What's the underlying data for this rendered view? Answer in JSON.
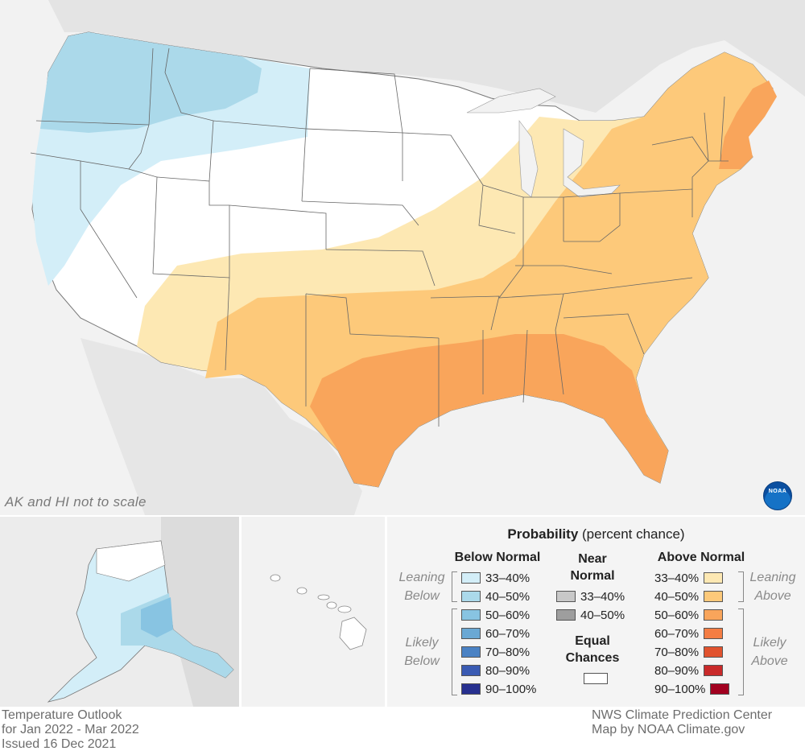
{
  "map": {
    "note": "AK and HI not to scale",
    "logo_text": "NOAA"
  },
  "legend": {
    "title_bold": "Probability",
    "title_rest": " (percent chance)",
    "below_normal": {
      "heading": "Below Normal",
      "leaning_label": [
        "Leaning",
        "Below"
      ],
      "likely_label": [
        "Likely",
        "Below"
      ],
      "bins": [
        {
          "label": "33–40%",
          "color": "#d3eef8"
        },
        {
          "label": "40–50%",
          "color": "#abd9ea"
        },
        {
          "label": "50–60%",
          "color": "#88c4e2"
        },
        {
          "label": "60–70%",
          "color": "#6aa8d4"
        },
        {
          "label": "70–80%",
          "color": "#4a82c4"
        },
        {
          "label": "80–90%",
          "color": "#3a5bb3"
        },
        {
          "label": "90–100%",
          "color": "#27308f"
        }
      ]
    },
    "near_normal": {
      "heading": [
        "Near",
        "Normal"
      ],
      "bins": [
        {
          "label": "33–40%",
          "color": "#c8c8c8"
        },
        {
          "label": "40–50%",
          "color": "#9e9e9e"
        }
      ]
    },
    "equal_chances": {
      "heading": [
        "Equal",
        "Chances"
      ],
      "color": "#ffffff"
    },
    "above_normal": {
      "heading": "Above Normal",
      "leaning_label": [
        "Leaning",
        "Above"
      ],
      "likely_label": [
        "Likely",
        "Above"
      ],
      "bins": [
        {
          "label": "33–40%",
          "color": "#fde8b3"
        },
        {
          "label": "40–50%",
          "color": "#fdc97a"
        },
        {
          "label": "50–60%",
          "color": "#f9a55b"
        },
        {
          "label": "60–70%",
          "color": "#f47d43"
        },
        {
          "label": "70–80%",
          "color": "#e1532f"
        },
        {
          "label": "80–90%",
          "color": "#c92a2a"
        },
        {
          "label": "90–100%",
          "color": "#a1001f"
        }
      ]
    }
  },
  "footer": {
    "left": [
      "Temperature Outlook",
      "for Jan 2022 - Mar 2022",
      "Issued 16 Dec 2021"
    ],
    "right": [
      "NWS Climate Prediction Center",
      "Map by NOAA Climate.gov"
    ]
  }
}
